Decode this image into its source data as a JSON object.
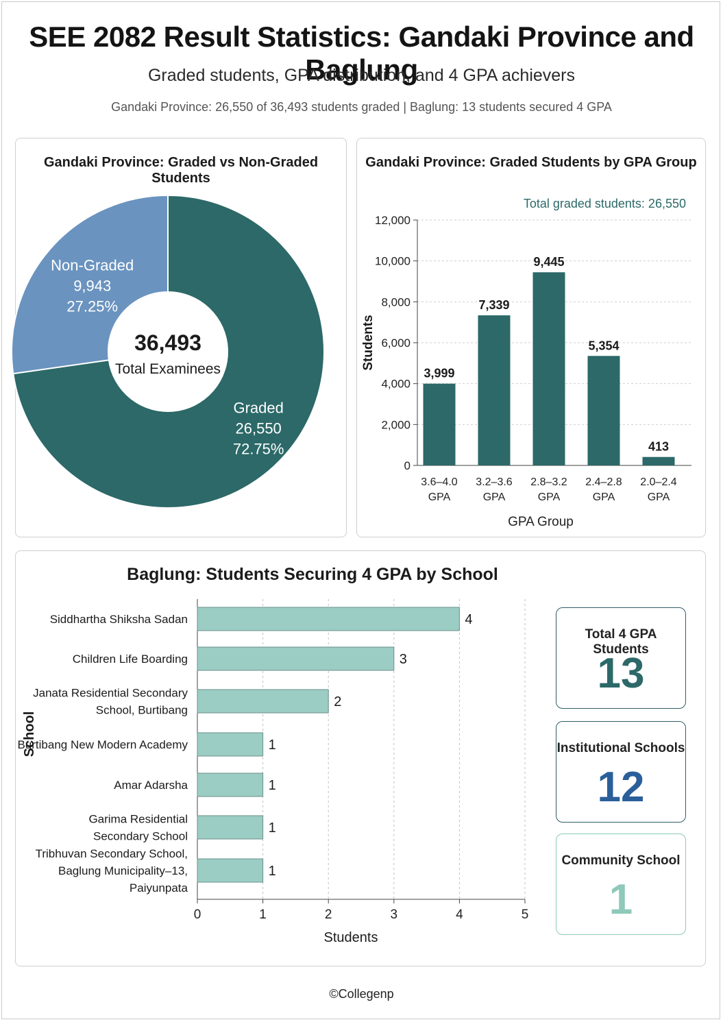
{
  "header": {
    "title": "SEE 2082 Result Statistics: Gandaki Province and Baglung",
    "subtitle": "Graded students, GPA distribution, and 4 GPA achievers",
    "summary": "Gandaki Province: 26,550 of 36,493 students graded  |  Baglung: 13 students secured 4 GPA"
  },
  "colors": {
    "graded": "#2c6968",
    "non_graded": "#6a93bf",
    "bar": "#2c6968",
    "hbar": "#9bcdc4",
    "institutional": "#2a5f9a",
    "community": "#8ec9b9"
  },
  "chart_data": [
    {
      "type": "pie",
      "title": "Gandaki Province: Graded vs Non-Graded Students",
      "center_value": "36,493",
      "center_label": "Total Examinees",
      "slices": [
        {
          "name": "Graded",
          "value": 26550,
          "value_label": "26,550",
          "percent_label": "72.75%"
        },
        {
          "name": "Non-Graded",
          "value": 9943,
          "value_label": "9,943",
          "percent_label": "27.25%"
        }
      ]
    },
    {
      "type": "bar",
      "title": "Gandaki Province: Graded Students by GPA Group",
      "annotation": "Total graded students: 26,550",
      "categories": [
        "3.6–4.0 GPA",
        "3.2–3.6 GPA",
        "2.8–3.2 GPA",
        "2.4–2.8 GPA",
        "2.0–2.4 GPA"
      ],
      "values": [
        3999,
        7339,
        9445,
        5354,
        413
      ],
      "value_labels": [
        "3,999",
        "7,339",
        "9,445",
        "5,354",
        "413"
      ],
      "xlabel": "GPA Group",
      "ylabel": "Students",
      "ylim": [
        0,
        12000
      ],
      "yticks": [
        0,
        2000,
        4000,
        6000,
        8000,
        10000,
        12000
      ],
      "ytick_labels": [
        "0",
        "2,000",
        "4,000",
        "6,000",
        "8,000",
        "10,000",
        "12,000"
      ],
      "grid": true
    },
    {
      "type": "bar",
      "orientation": "horizontal",
      "title": "Baglung: Students Securing 4 GPA by School",
      "categories": [
        "Siddhartha Shiksha Sadan",
        "Children Life Boarding",
        "Janata Residential Secondary School, Burtibang",
        "Burtibang New Modern Academy",
        "Amar Adarsha",
        "Garima Residential Secondary School",
        "Tribhuvan Secondary School, Baglung Municipality–13, Paiyunpata"
      ],
      "values": [
        4,
        3,
        2,
        1,
        1,
        1,
        1
      ],
      "xlabel": "Students",
      "ylabel": "School",
      "xlim": [
        0,
        5
      ],
      "xticks": [
        0,
        1,
        2,
        3,
        4,
        5
      ],
      "grid": true
    }
  ],
  "stats": [
    {
      "label": "Total 4 GPA Students",
      "value": "13"
    },
    {
      "label": "Institutional Schools",
      "value": "12"
    },
    {
      "label": "Community School",
      "value": "1"
    }
  ],
  "footer": "©Collegenp"
}
